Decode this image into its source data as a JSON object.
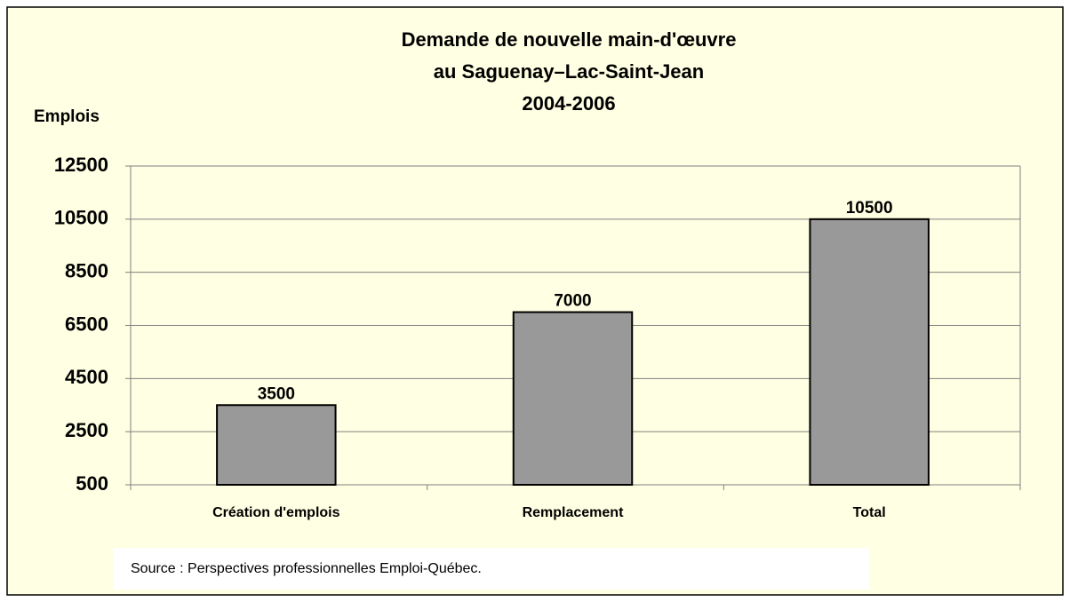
{
  "chart_data": {
    "type": "bar",
    "title": [
      "Demande de nouvelle main-d'œuvre",
      "au Saguenay–Lac-Saint-Jean",
      "2004-2006"
    ],
    "ylabel": "Emplois",
    "categories": [
      "Création d'emplois",
      "Remplacement",
      "Total"
    ],
    "values": [
      3500,
      7000,
      10500
    ],
    "color": "#999999",
    "ylim": [
      500,
      12500
    ],
    "yticks": [
      500,
      2500,
      4500,
      6500,
      8500,
      10500,
      12500
    ],
    "grid": true,
    "source": "Source : Perspectives professionnelles Emploi-Québec."
  }
}
